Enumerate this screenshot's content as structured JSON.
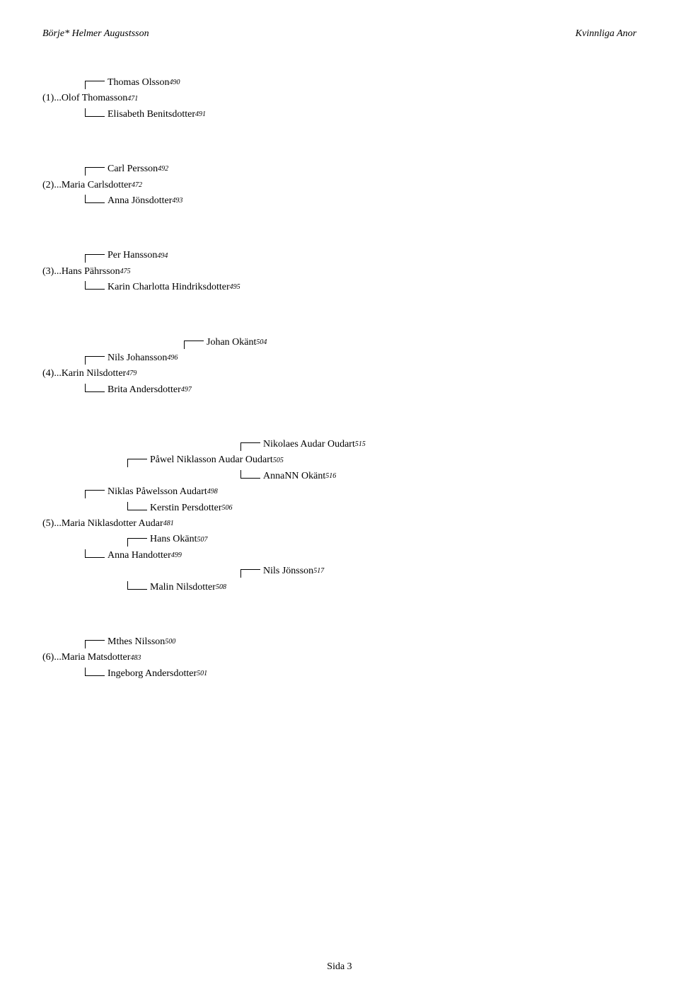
{
  "header_left": "Börje* Helmer Augustsson",
  "header_right": "Kvinnliga Anor",
  "footer": "Sida 3",
  "blocks": [
    {
      "entries": [
        {
          "indent": 1,
          "conn": "top",
          "name": "Thomas Olsson",
          "sup": "490"
        },
        {
          "indent": 0,
          "conn": "none",
          "name": "(1)...Olof Thomasson",
          "sup": "471"
        },
        {
          "indent": 1,
          "conn": "bot",
          "name": "Elisabeth Benitsdotter",
          "sup": "491"
        }
      ]
    },
    {
      "entries": [
        {
          "indent": 1,
          "conn": "top",
          "name": "Carl Persson",
          "sup": "492"
        },
        {
          "indent": 0,
          "conn": "none",
          "name": "(2)...Maria Carlsdotter",
          "sup": "472"
        },
        {
          "indent": 1,
          "conn": "bot",
          "name": "Anna Jönsdotter",
          "sup": "493"
        }
      ]
    },
    {
      "entries": [
        {
          "indent": 1,
          "conn": "top",
          "name": "Per Hansson",
          "sup": "494"
        },
        {
          "indent": 0,
          "conn": "none",
          "name": "(3)...Hans Pährsson",
          "sup": "475"
        },
        {
          "indent": 1,
          "conn": "bot",
          "name": "Karin Charlotta Hindriksdotter",
          "sup": "495"
        }
      ]
    },
    {
      "entries": [
        {
          "indent": 3,
          "conn": "top",
          "name": "Johan Okänt",
          "sup": "504"
        },
        {
          "indent": 1,
          "conn": "top",
          "name": "Nils Johansson",
          "sup": "496"
        },
        {
          "indent": 0,
          "conn": "none",
          "name": "(4)...Karin Nilsdotter",
          "sup": "479"
        },
        {
          "indent": 1,
          "conn": "bot",
          "name": "Brita Andersdotter",
          "sup": "497"
        }
      ]
    },
    {
      "entries": [
        {
          "indent": 4,
          "conn": "top",
          "name": "Nikolaes Audar Oudart",
          "sup": "515"
        },
        {
          "indent": 2,
          "conn": "top",
          "name": "Påwel Niklasson Audar Oudart",
          "sup": "505"
        },
        {
          "indent": 4,
          "conn": "bot",
          "name": "AnnaNN Okänt",
          "sup": "516"
        },
        {
          "indent": 1,
          "conn": "top",
          "name": "Niklas Påwelsson Audart",
          "sup": "498"
        },
        {
          "indent": 2,
          "conn": "bot",
          "name": "Kerstin Persdotter",
          "sup": "506"
        },
        {
          "indent": 0,
          "conn": "none",
          "name": "(5)...Maria Niklasdotter Audar",
          "sup": "481"
        },
        {
          "indent": 2,
          "conn": "top",
          "name": "Hans Okänt",
          "sup": "507"
        },
        {
          "indent": 1,
          "conn": "bot",
          "name": "Anna Handotter",
          "sup": "499"
        },
        {
          "indent": 4,
          "conn": "top",
          "name": "Nils Jönsson",
          "sup": "517"
        },
        {
          "indent": 2,
          "conn": "bot",
          "name": "Malin Nilsdotter",
          "sup": "508"
        }
      ]
    },
    {
      "entries": [
        {
          "indent": 1,
          "conn": "top",
          "name": "Mthes Nilsson",
          "sup": "500"
        },
        {
          "indent": 0,
          "conn": "none",
          "name": "(6)...Maria Matsdotter",
          "sup": "483"
        },
        {
          "indent": 1,
          "conn": "bot",
          "name": "Ingeborg Andersdotter",
          "sup": "501"
        }
      ]
    }
  ]
}
